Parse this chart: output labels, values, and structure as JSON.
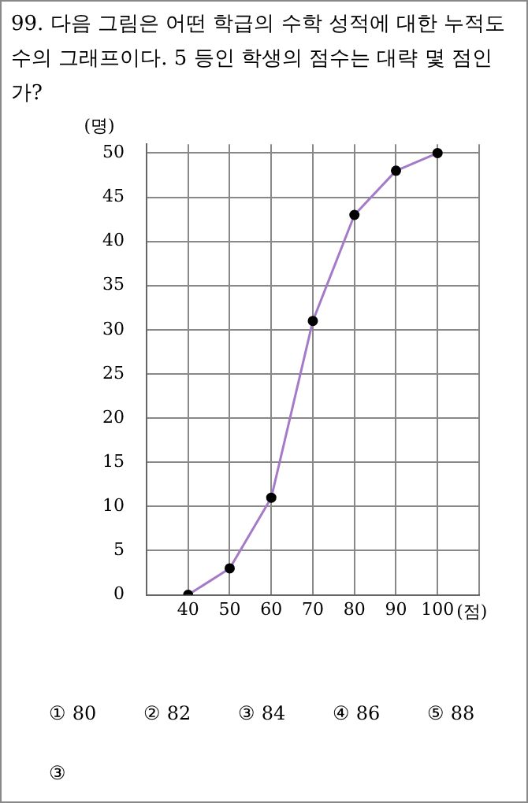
{
  "chart_data": {
    "type": "line",
    "title": "99. 다음 그림은 어떤 학급의 수학 성적에 대한 누적도수의 그래프이다. 5 등인 학생의 점수는 대략 몇 점인가?",
    "xlabel": "(점)",
    "ylabel": "(명)",
    "x": [
      40,
      50,
      60,
      70,
      80,
      90,
      100
    ],
    "series": [
      {
        "color": "#a57ac8",
        "values": [
          0,
          3,
          11,
          31,
          43,
          48,
          50
        ]
      }
    ],
    "xlim": [
      30,
      110
    ],
    "xticks": [
      {
        "value": 30,
        "label": null
      },
      40,
      50,
      60,
      70,
      80,
      90,
      100,
      {
        "value": 110,
        "label": null
      }
    ],
    "ylim": [
      0,
      51
    ],
    "yticks": [
      0,
      5,
      10,
      15,
      20,
      25,
      30,
      35,
      40,
      45,
      50
    ],
    "grid": true,
    "marker": "circle",
    "line_style": "solid",
    "legend": false,
    "annotations": [
      "① 80",
      "② 82",
      "③ 84",
      "④ 86",
      "⑤ 88",
      "③"
    ]
  }
}
